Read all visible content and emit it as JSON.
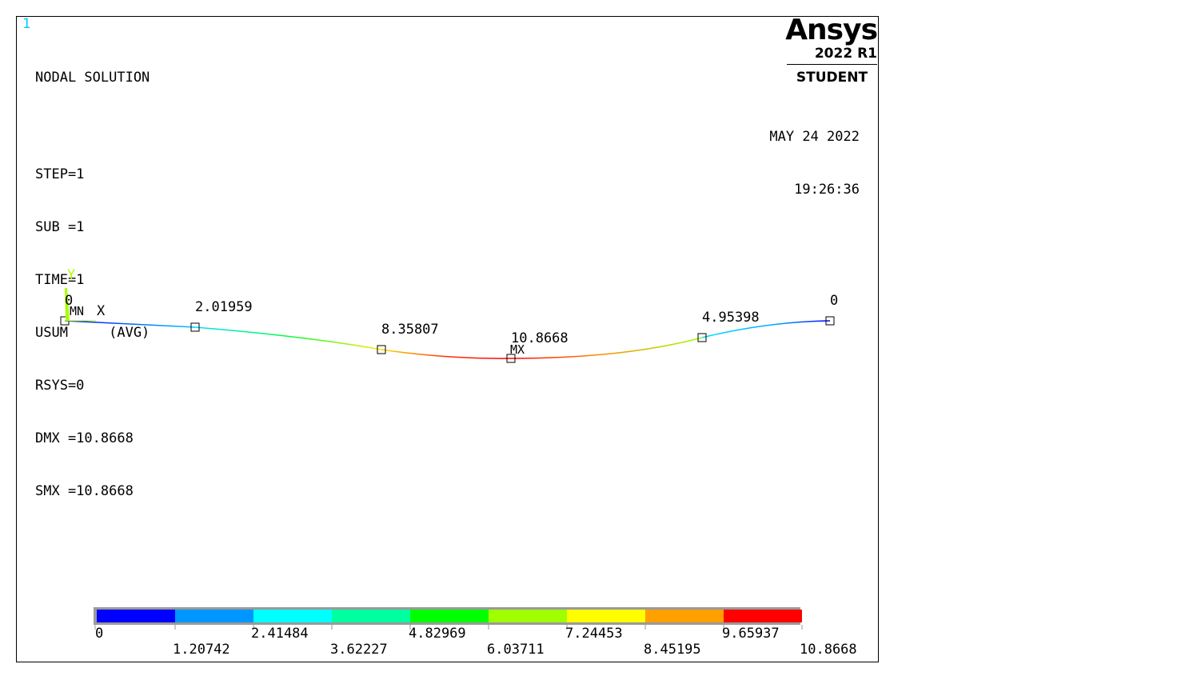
{
  "window_number": "1",
  "header": {
    "title": "NODAL SOLUTION",
    "lines": [
      "STEP=1",
      "SUB =1",
      "TIME=1",
      "USUM     (AVG)",
      "RSYS=0",
      "DMX =10.8668",
      "SMX =10.8668"
    ]
  },
  "brand": {
    "logo": "Ansys",
    "release": "2022 R1",
    "edition": "STUDENT"
  },
  "datetime": {
    "date": "MAY 24 2022",
    "time": "19:26:36"
  },
  "triad": {
    "y_label": "Y",
    "x_label": "X",
    "color": "#aaff00"
  },
  "markers": {
    "min": "MN",
    "max": "MX"
  },
  "node_labels": [
    "0",
    "2.01959",
    "8.35807",
    "10.8668",
    "4.95398",
    "0"
  ],
  "legend": {
    "colors": [
      "#0000ff",
      "#0096ff",
      "#00ffff",
      "#00ffa0",
      "#00ff00",
      "#a0ff00",
      "#ffff00",
      "#ffa000",
      "#ff0000"
    ],
    "ticks_bottom": [
      "0",
      "2.41484",
      "4.82969",
      "7.24453",
      "9.65937"
    ],
    "ticks_top": [
      "1.20742",
      "3.62227",
      "6.03711",
      "8.45195",
      "10.8668"
    ]
  }
}
